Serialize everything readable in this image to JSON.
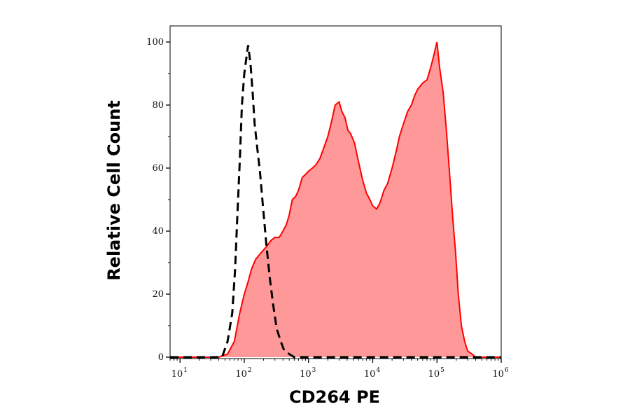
{
  "chart_data": {
    "type": "area",
    "title": "",
    "xlabel": "CD264 PE",
    "ylabel": "Relative Cell Count",
    "x_scale": "log",
    "xlim": [
      7,
      1000000
    ],
    "ylim": [
      0,
      100
    ],
    "x_ticks": [
      {
        "base": "10",
        "exp": "1",
        "value": 10
      },
      {
        "base": "10",
        "exp": "2",
        "value": 100
      },
      {
        "base": "10",
        "exp": "3",
        "value": 1000
      },
      {
        "base": "10",
        "exp": "4",
        "value": 10000
      },
      {
        "base": "10",
        "exp": "5",
        "value": 100000
      },
      {
        "base": "10",
        "exp": "6",
        "value": 1000000
      }
    ],
    "y_ticks": [
      "0",
      "20",
      "40",
      "60",
      "80",
      "100"
    ],
    "grid": false,
    "legend": "none",
    "series": [
      {
        "style": "filled area, solid red outline",
        "fill_color": "#ff9999",
        "line_color": "#ff0000",
        "points": [
          [
            7,
            0
          ],
          [
            20,
            0
          ],
          [
            40,
            0
          ],
          [
            55,
            1
          ],
          [
            70,
            5
          ],
          [
            85,
            14
          ],
          [
            100,
            20
          ],
          [
            115,
            24
          ],
          [
            130,
            28
          ],
          [
            150,
            31
          ],
          [
            180,
            33
          ],
          [
            220,
            35
          ],
          [
            260,
            37
          ],
          [
            300,
            38
          ],
          [
            350,
            38
          ],
          [
            400,
            40
          ],
          [
            450,
            42
          ],
          [
            500,
            45
          ],
          [
            560,
            50
          ],
          [
            630,
            51
          ],
          [
            700,
            53
          ],
          [
            800,
            57
          ],
          [
            900,
            58
          ],
          [
            1000,
            59
          ],
          [
            1150,
            60
          ],
          [
            1300,
            61
          ],
          [
            1500,
            63
          ],
          [
            1700,
            66
          ],
          [
            2000,
            70
          ],
          [
            2300,
            75
          ],
          [
            2600,
            80
          ],
          [
            3000,
            81
          ],
          [
            3300,
            78
          ],
          [
            3700,
            76
          ],
          [
            4100,
            72
          ],
          [
            4500,
            71
          ],
          [
            5200,
            68
          ],
          [
            6000,
            62
          ],
          [
            7000,
            56
          ],
          [
            8000,
            52
          ],
          [
            9000,
            50
          ],
          [
            10000,
            48
          ],
          [
            11500,
            47
          ],
          [
            13000,
            49
          ],
          [
            15000,
            53
          ],
          [
            17000,
            55
          ],
          [
            20000,
            60
          ],
          [
            23000,
            65
          ],
          [
            26000,
            70
          ],
          [
            30000,
            74
          ],
          [
            35000,
            78
          ],
          [
            40000,
            80
          ],
          [
            45000,
            83
          ],
          [
            50000,
            85
          ],
          [
            60000,
            87
          ],
          [
            70000,
            88
          ],
          [
            80000,
            92
          ],
          [
            90000,
            96
          ],
          [
            100000,
            100
          ],
          [
            110000,
            92
          ],
          [
            125000,
            84
          ],
          [
            140000,
            72
          ],
          [
            155000,
            60
          ],
          [
            175000,
            45
          ],
          [
            195000,
            33
          ],
          [
            215000,
            20
          ],
          [
            240000,
            10
          ],
          [
            270000,
            5
          ],
          [
            300000,
            2
          ],
          [
            350000,
            1
          ],
          [
            400000,
            0
          ],
          [
            1000000,
            0
          ]
        ]
      },
      {
        "style": "dashed black line, unfilled",
        "line_color": "#000000",
        "points": [
          [
            7,
            0
          ],
          [
            30,
            0
          ],
          [
            45,
            0
          ],
          [
            55,
            5
          ],
          [
            65,
            14
          ],
          [
            72,
            28
          ],
          [
            78,
            45
          ],
          [
            85,
            62
          ],
          [
            92,
            80
          ],
          [
            100,
            90
          ],
          [
            108,
            95
          ],
          [
            115,
            99
          ],
          [
            125,
            93
          ],
          [
            135,
            84
          ],
          [
            145,
            74
          ],
          [
            160,
            66
          ],
          [
            175,
            59
          ],
          [
            195,
            48
          ],
          [
            220,
            36
          ],
          [
            250,
            25
          ],
          [
            280,
            17
          ],
          [
            320,
            9
          ],
          [
            370,
            5
          ],
          [
            420,
            2
          ],
          [
            500,
            1
          ],
          [
            600,
            0
          ],
          [
            1000000,
            0
          ]
        ]
      }
    ]
  }
}
